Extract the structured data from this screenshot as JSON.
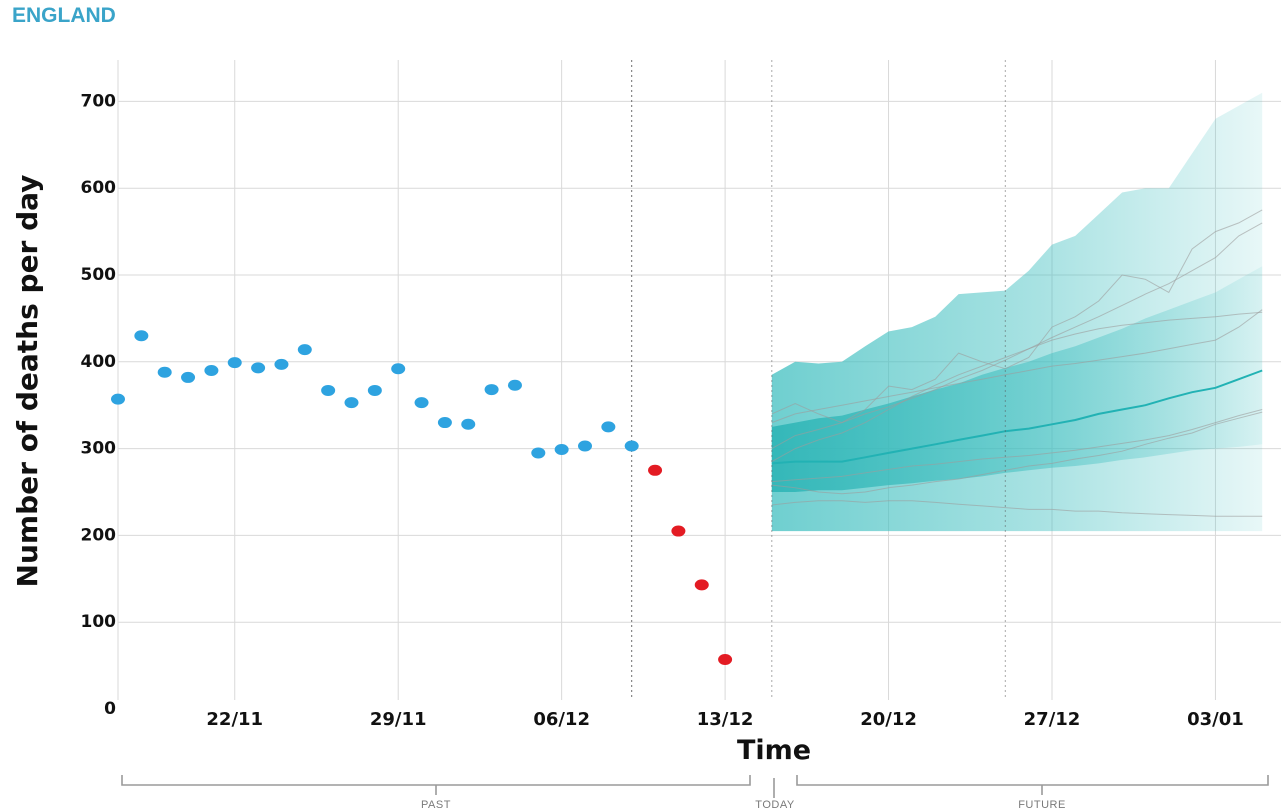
{
  "header": {
    "region": "ENGLAND"
  },
  "colors": {
    "observed": "#2ea3e0",
    "incomplete": "#e31b23",
    "projection_band": "#3fbfc0",
    "projection_median": "#22b2b4",
    "sample_lines": "#9c9c9c",
    "grid": "#d9d9d9"
  },
  "chart_data": {
    "type": "scatter",
    "title": "",
    "xlabel": "Time",
    "ylabel": "Number of deaths per day",
    "ylim": [
      0,
      750
    ],
    "yticks": [
      0,
      100,
      200,
      300,
      400,
      500,
      600,
      700
    ],
    "x_tick_labels": [
      {
        "date": "22/11",
        "day": 5
      },
      {
        "date": "29/11",
        "day": 12
      },
      {
        "date": "06/12",
        "day": 19
      },
      {
        "date": "13/12",
        "day": 26
      },
      {
        "date": "20/12",
        "day": 33
      },
      {
        "date": "27/12",
        "day": 40
      },
      {
        "date": "03/01",
        "day": 47
      }
    ],
    "x_start_date": "17/11",
    "grid": true,
    "period_labels": {
      "past": "PAST",
      "today": "TODAY",
      "future": "FUTURE"
    },
    "today_day": 28,
    "data_cutoff_day": 22,
    "observed_series": {
      "name": "",
      "x": [
        0,
        1,
        2,
        3,
        4,
        5,
        6,
        7,
        8,
        9,
        10,
        11,
        12,
        13,
        14,
        15,
        16,
        17,
        18,
        19,
        20,
        21,
        22
      ],
      "y": [
        357,
        430,
        388,
        382,
        390,
        399,
        393,
        397,
        414,
        367,
        353,
        367,
        392,
        353,
        330,
        328,
        368,
        373,
        295,
        299,
        303,
        325,
        303
      ]
    },
    "incomplete_series": {
      "name": "",
      "x": [
        23,
        24,
        25,
        26
      ],
      "y": [
        275,
        205,
        143,
        57
      ]
    },
    "projection": {
      "x": [
        28,
        29,
        30,
        31,
        32,
        33,
        34,
        35,
        36,
        37,
        38,
        39,
        40,
        41,
        42,
        43,
        44,
        45,
        46,
        47,
        48,
        49
      ],
      "median": [
        283,
        285,
        285,
        285,
        290,
        295,
        300,
        305,
        310,
        315,
        320,
        323,
        328,
        333,
        340,
        345,
        350,
        358,
        365,
        370,
        380,
        390
      ],
      "inner_low": [
        250,
        250,
        252,
        252,
        255,
        258,
        260,
        263,
        265,
        268,
        272,
        275,
        278,
        280,
        283,
        287,
        290,
        294,
        298,
        300,
        302,
        305
      ],
      "inner_high": [
        325,
        330,
        335,
        338,
        345,
        352,
        360,
        368,
        375,
        385,
        393,
        400,
        410,
        418,
        428,
        438,
        450,
        460,
        470,
        480,
        495,
        510
      ],
      "outer_low": [
        205,
        205,
        205,
        205,
        205,
        205,
        205,
        205,
        205,
        205,
        205,
        205,
        205,
        205,
        205,
        205,
        205,
        205,
        205,
        205,
        205,
        205
      ],
      "outer_high": [
        385,
        400,
        398,
        400,
        418,
        435,
        440,
        452,
        478,
        480,
        482,
        505,
        535,
        545,
        570,
        595,
        600,
        600,
        640,
        680,
        695,
        710
      ],
      "samples": [
        [
          258,
          255,
          250,
          248,
          250,
          255,
          258,
          262,
          265,
          270,
          275,
          280,
          283,
          288,
          292,
          297,
          305,
          312,
          318,
          328,
          335,
          342
        ],
        [
          340,
          352,
          340,
          330,
          345,
          372,
          368,
          380,
          410,
          400,
          392,
          405,
          440,
          452,
          470,
          500,
          495,
          480,
          530,
          550,
          560,
          575
        ],
        [
          235,
          238,
          240,
          240,
          238,
          240,
          240,
          238,
          236,
          234,
          232,
          230,
          230,
          228,
          228,
          226,
          225,
          224,
          223,
          222,
          222,
          222
        ],
        [
          285,
          300,
          310,
          318,
          330,
          345,
          360,
          373,
          385,
          395,
          405,
          415,
          425,
          432,
          438,
          442,
          445,
          448,
          450,
          452,
          455,
          457
        ],
        [
          300,
          315,
          322,
          330,
          340,
          348,
          358,
          368,
          380,
          390,
          402,
          415,
          428,
          440,
          452,
          465,
          478,
          490,
          505,
          520,
          545,
          560
        ],
        [
          330,
          340,
          345,
          350,
          355,
          360,
          365,
          370,
          375,
          380,
          385,
          390,
          395,
          398,
          402,
          406,
          410,
          415,
          420,
          425,
          440,
          460
        ],
        [
          262,
          264,
          266,
          268,
          272,
          276,
          280,
          282,
          285,
          288,
          290,
          292,
          295,
          298,
          302,
          306,
          310,
          315,
          322,
          330,
          338,
          345
        ]
      ]
    }
  }
}
